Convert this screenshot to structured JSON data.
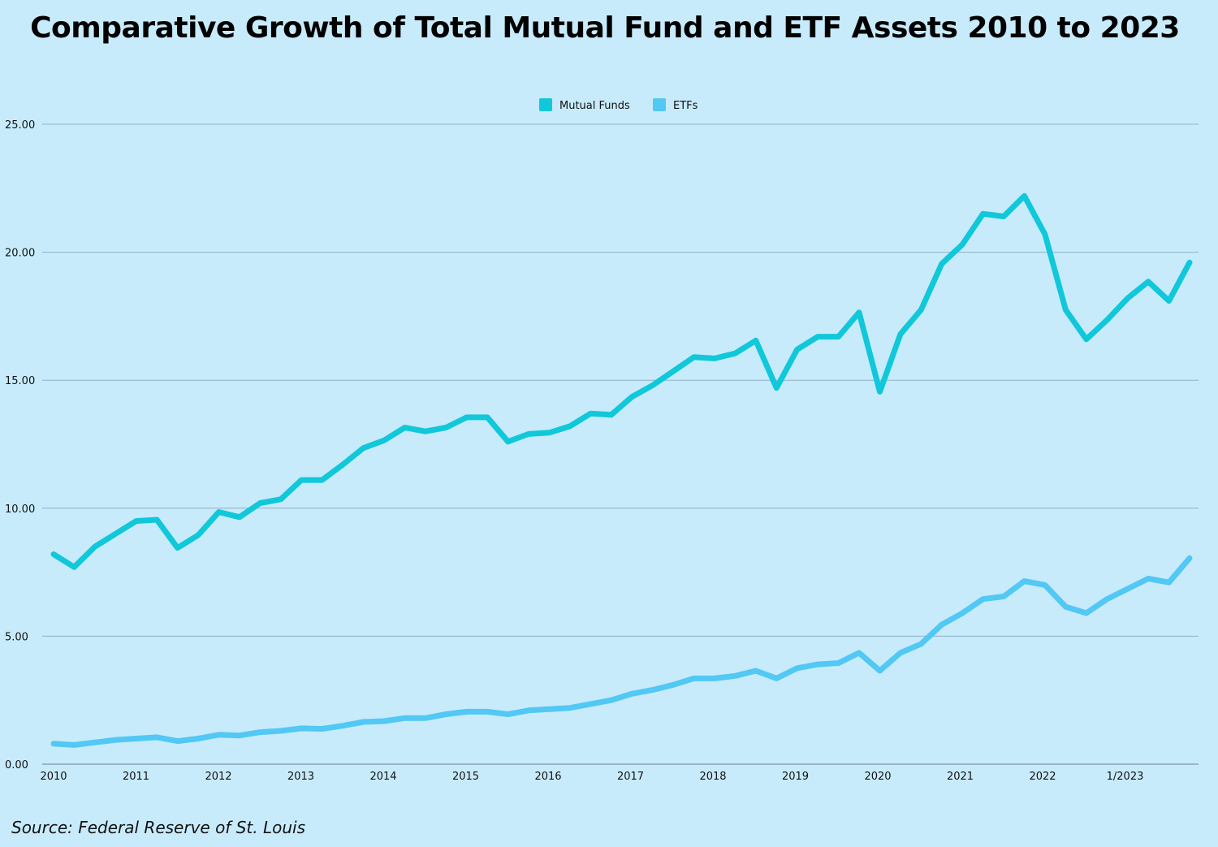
{
  "chart_data": {
    "type": "line",
    "title": "Comparative Growth of Total Mutual Fund and ETF Assets 2010 to 2023",
    "source": "Source: Federal Reserve of St. Louis",
    "xlabel": "",
    "ylabel": "",
    "ylim": [
      0,
      25
    ],
    "yticks": [
      "0.00",
      "5.00",
      "10.00",
      "15.00",
      "20.00",
      "25.00"
    ],
    "xtick_labels": [
      "2010",
      "2011",
      "2012",
      "2013",
      "2014",
      "2015",
      "2016",
      "2017",
      "2018",
      "2019",
      "2020",
      "2021",
      "2022",
      "1/2023"
    ],
    "x_start": 2010,
    "x_step": 0.25,
    "legend_position": "top-center",
    "grid": true,
    "series": [
      {
        "name": "Mutual Funds",
        "color": "#10c8da",
        "values": [
          8.2,
          7.7,
          8.5,
          9.0,
          9.5,
          9.55,
          8.45,
          8.95,
          9.85,
          9.65,
          10.2,
          10.35,
          11.1,
          11.1,
          11.7,
          12.35,
          12.65,
          13.15,
          13.0,
          13.15,
          13.55,
          13.55,
          12.6,
          12.9,
          12.95,
          13.2,
          13.7,
          13.65,
          14.35,
          14.8,
          15.35,
          15.9,
          15.85,
          16.05,
          16.55,
          14.7,
          16.2,
          16.7,
          16.7,
          17.65,
          14.55,
          16.8,
          17.75,
          19.55,
          20.3,
          21.5,
          21.4,
          22.2,
          20.7,
          17.75,
          16.6,
          17.35,
          18.2,
          18.85,
          18.1,
          19.6
        ]
      },
      {
        "name": "ETFs",
        "color": "#52c8f4",
        "values": [
          0.8,
          0.75,
          0.85,
          0.95,
          1.0,
          1.05,
          0.9,
          1.0,
          1.15,
          1.12,
          1.25,
          1.3,
          1.4,
          1.38,
          1.5,
          1.65,
          1.68,
          1.8,
          1.8,
          1.95,
          2.05,
          2.05,
          1.95,
          2.1,
          2.15,
          2.2,
          2.35,
          2.5,
          2.75,
          2.9,
          3.1,
          3.35,
          3.35,
          3.45,
          3.65,
          3.35,
          3.75,
          3.9,
          3.95,
          4.35,
          3.65,
          4.35,
          4.7,
          5.45,
          5.9,
          6.45,
          6.55,
          7.15,
          7.0,
          6.15,
          5.9,
          6.45,
          6.85,
          7.25,
          7.1,
          8.05
        ]
      }
    ]
  },
  "colors": {
    "background": "#c8ebfc",
    "grid": "#8fb0c4",
    "axis": "#7f97a6"
  }
}
